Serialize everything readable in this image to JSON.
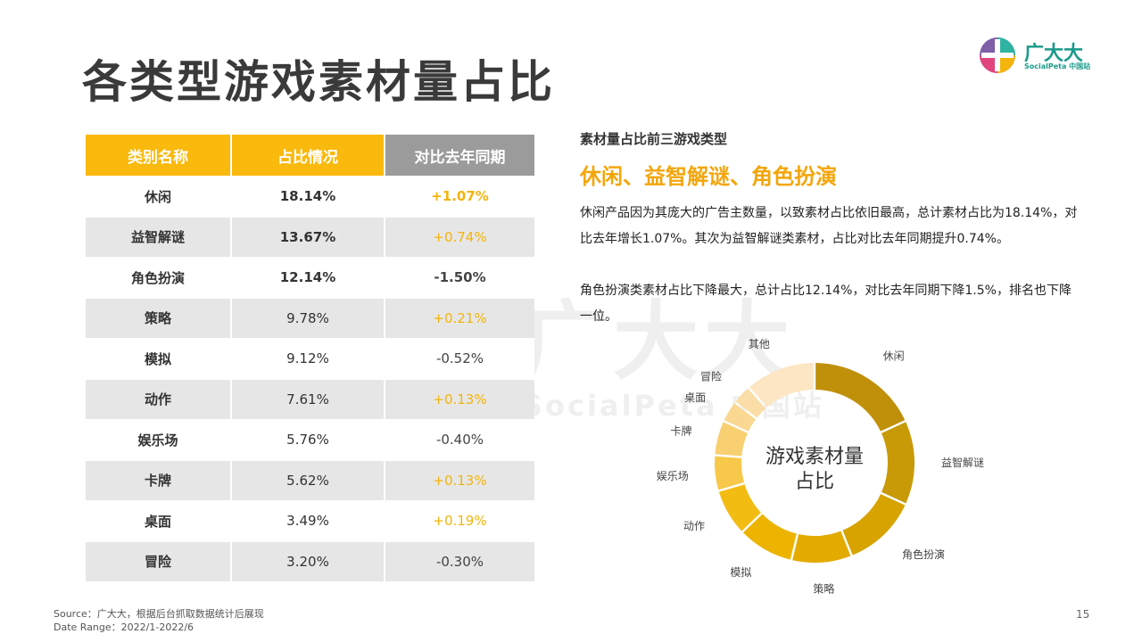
{
  "title": "各类型游戏素材量占比",
  "logo": {
    "name": "广大大",
    "sub": "SocialPeta 中国站"
  },
  "watermark": {
    "name": "广大大",
    "sub": "SocialPeta 中国站"
  },
  "table": {
    "headers": [
      "类别名称",
      "占比情况",
      "对比去年同期"
    ],
    "rows": [
      {
        "name": "休闲",
        "share": "18.14%",
        "change": "+1.07%"
      },
      {
        "name": "益智解谜",
        "share": "13.67%",
        "change": "+0.74%"
      },
      {
        "name": "角色扮演",
        "share": "12.14%",
        "change": "-1.50%"
      },
      {
        "name": "策略",
        "share": "9.78%",
        "change": "+0.21%"
      },
      {
        "name": "模拟",
        "share": "9.12%",
        "change": "-0.52%"
      },
      {
        "name": "动作",
        "share": "7.61%",
        "change": "+0.13%"
      },
      {
        "name": "娱乐场",
        "share": "5.76%",
        "change": "-0.40%"
      },
      {
        "name": "卡牌",
        "share": "5.62%",
        "change": "+0.13%"
      },
      {
        "name": "桌面",
        "share": "3.49%",
        "change": "+0.19%"
      },
      {
        "name": "冒险",
        "share": "3.20%",
        "change": "-0.30%"
      }
    ]
  },
  "right": {
    "label": "素材量占比前三游戏类型",
    "headline": "休闲、益智解谜、角色扮演",
    "para1": "休闲产品因为其庞大的广告主数量，以致素材占比依旧最高，总计素材占比为18.14%，对比去年增长1.07%。其次为益智解谜类素材，占比对比去年同期提升0.74%。",
    "para2": "角色扮演类素材占比下降最大，总计占比12.14%，对比去年同期下降1.5%，排名也下降一位。"
  },
  "chart_data": {
    "type": "pie",
    "title": "游戏素材量占比",
    "categories": [
      "休闲",
      "益智解谜",
      "角色扮演",
      "策略",
      "模拟",
      "动作",
      "娱乐场",
      "卡牌",
      "桌面",
      "冒险",
      "其他"
    ],
    "values": [
      18.14,
      13.67,
      12.14,
      9.78,
      9.12,
      7.61,
      5.76,
      5.62,
      3.49,
      3.2,
      11.47
    ],
    "colors": [
      "#c0900a",
      "#c89a08",
      "#d7a300",
      "#e3ab00",
      "#edb301",
      "#f3bc13",
      "#f7c849",
      "#f8d071",
      "#fad891",
      "#fbdea7",
      "#fde6c4"
    ]
  },
  "footer": {
    "source": "Source：广大大，根据后台抓取数据统计后展现",
    "range": "Date Range：2022/1-2022/6"
  },
  "page_number": "15"
}
